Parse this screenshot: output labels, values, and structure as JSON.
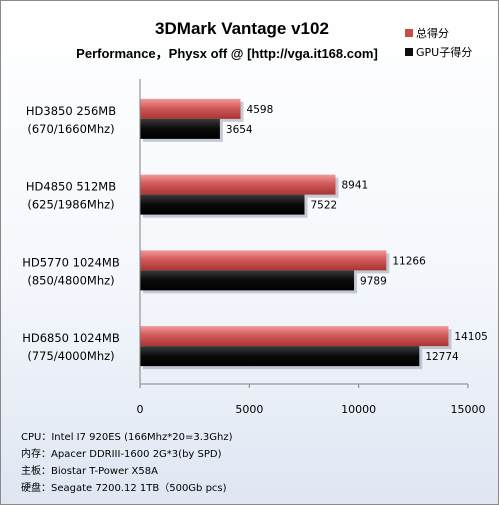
{
  "chart_data": {
    "type": "bar",
    "orientation": "horizontal",
    "title": "3DMark Vantage v102",
    "subtitle": "Performance，Physx off @ [http://vga.it168.com]",
    "categories": [
      [
        "HD3850 256MB",
        "(670/1660Mhz)"
      ],
      [
        "HD4850 512MB",
        "(625/1986Mhz)"
      ],
      [
        "HD5770 1024MB",
        "(850/4800Mhz)"
      ],
      [
        "HD6850 1024MB",
        "(775/4000Mhz)"
      ]
    ],
    "series": [
      {
        "name": "总得分",
        "color": "#cc4a4a",
        "values": [
          4598,
          8941,
          11266,
          14105
        ]
      },
      {
        "name": "GPU子得分",
        "color": "#0d0d0d",
        "values": [
          3654,
          7522,
          9789,
          12774
        ]
      }
    ],
    "xlim": [
      0,
      15000
    ],
    "xticks": [
      0,
      5000,
      10000,
      15000
    ],
    "legend_position": "top-right",
    "grid": false
  },
  "specs": [
    "CPU：Intel I7 920ES (166Mhz*20=3.3Ghz)",
    "内存：Apacer DDRIII-1600 2G*3(by SPD)",
    "主板：Biostar T-Power X58A",
    "硬盘：Seagate 7200.12 1TB（500Gb pcs)"
  ]
}
